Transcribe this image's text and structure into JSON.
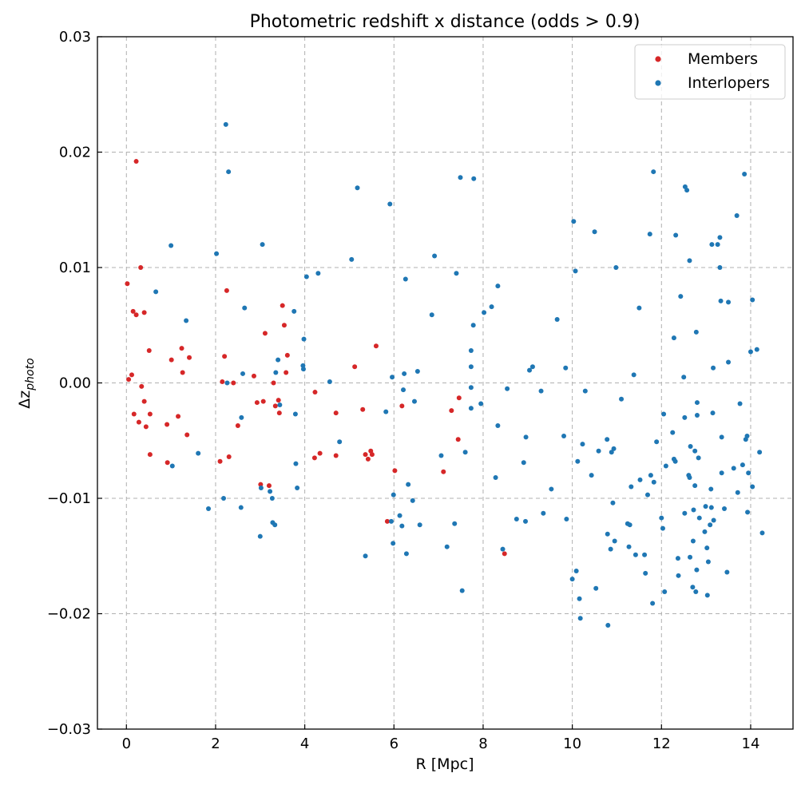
{
  "chart_data": {
    "type": "scatter",
    "title": "Photometric redshift x distance (odds > 0.9)",
    "xlabel": "R [Mpc]",
    "ylabel_base": "Δz",
    "ylabel_sub": "photo",
    "xlim": [
      -0.65,
      14.95
    ],
    "ylim": [
      -0.03,
      0.03
    ],
    "x_ticks": [
      0,
      2,
      4,
      6,
      8,
      10,
      12,
      14
    ],
    "x_tick_labels": [
      "0",
      "2",
      "4",
      "6",
      "8",
      "10",
      "12",
      "14"
    ],
    "y_ticks": [
      -0.03,
      -0.02,
      -0.01,
      0.0,
      0.01,
      0.02,
      0.03
    ],
    "y_tick_labels": [
      "−0.03",
      "−0.02",
      "−0.01",
      "0.00",
      "0.01",
      "0.02",
      "0.03"
    ],
    "grid": true,
    "legend_position": "top-right",
    "series": [
      {
        "name": "Members",
        "color": "#d62728",
        "points": [
          [
            0.02,
            0.0086
          ],
          [
            0.05,
            0.0003
          ],
          [
            0.12,
            0.0007
          ],
          [
            0.15,
            0.0062
          ],
          [
            0.17,
            -0.0027
          ],
          [
            0.22,
            0.0192
          ],
          [
            0.22,
            0.0059
          ],
          [
            0.28,
            -0.0034
          ],
          [
            0.32,
            0.01
          ],
          [
            0.34,
            -0.0003
          ],
          [
            0.4,
            -0.0016
          ],
          [
            0.4,
            0.0061
          ],
          [
            0.44,
            -0.0038
          ],
          [
            0.51,
            0.0028
          ],
          [
            0.53,
            -0.0027
          ],
          [
            0.53,
            -0.0062
          ],
          [
            0.91,
            -0.0036
          ],
          [
            0.92,
            -0.0069
          ],
          [
            1.01,
            0.002
          ],
          [
            1.16,
            -0.0029
          ],
          [
            1.24,
            0.003
          ],
          [
            1.26,
            0.0009
          ],
          [
            1.36,
            -0.0045
          ],
          [
            1.41,
            0.0022
          ],
          [
            2.1,
            -0.0068
          ],
          [
            2.15,
            0.0001
          ],
          [
            2.2,
            0.0023
          ],
          [
            2.25,
            0.008
          ],
          [
            2.3,
            -0.0064
          ],
          [
            2.4,
            0.0
          ],
          [
            2.5,
            -0.0037
          ],
          [
            2.86,
            0.0006
          ],
          [
            2.93,
            -0.0017
          ],
          [
            3.01,
            -0.0088
          ],
          [
            3.07,
            -0.0016
          ],
          [
            3.11,
            0.0043
          ],
          [
            3.2,
            -0.0089
          ],
          [
            3.3,
            0.0
          ],
          [
            3.34,
            -0.002
          ],
          [
            3.41,
            -0.0015
          ],
          [
            3.43,
            -0.0026
          ],
          [
            3.5,
            0.0067
          ],
          [
            3.54,
            0.005
          ],
          [
            3.58,
            0.0009
          ],
          [
            3.61,
            0.0024
          ],
          [
            4.22,
            -0.0065
          ],
          [
            4.23,
            -0.0008
          ],
          [
            4.34,
            -0.0061
          ],
          [
            4.7,
            -0.0063
          ],
          [
            4.7,
            -0.0026
          ],
          [
            5.12,
            0.0014
          ],
          [
            5.3,
            -0.0023
          ],
          [
            5.36,
            -0.0062
          ],
          [
            5.42,
            -0.0066
          ],
          [
            5.48,
            -0.0059
          ],
          [
            5.51,
            -0.0062
          ],
          [
            5.6,
            0.0032
          ],
          [
            5.85,
            -0.012
          ],
          [
            6.02,
            -0.0076
          ],
          [
            6.18,
            -0.002
          ],
          [
            7.11,
            -0.0077
          ],
          [
            7.29,
            -0.0024
          ],
          [
            7.44,
            -0.0049
          ],
          [
            7.46,
            -0.0013
          ],
          [
            8.48,
            -0.0148
          ]
        ]
      },
      {
        "name": "Interlopers",
        "color": "#1f77b4",
        "points": [
          [
            0.66,
            0.0079
          ],
          [
            1.0,
            0.0119
          ],
          [
            1.03,
            -0.0072
          ],
          [
            1.34,
            0.0054
          ],
          [
            1.61,
            -0.0061
          ],
          [
            1.84,
            -0.0109
          ],
          [
            2.02,
            0.0112
          ],
          [
            2.18,
            -0.01
          ],
          [
            2.23,
            0.0224
          ],
          [
            2.26,
            0.0
          ],
          [
            2.29,
            0.0183
          ],
          [
            2.57,
            -0.0108
          ],
          [
            2.58,
            -0.003
          ],
          [
            2.61,
            0.0008
          ],
          [
            2.65,
            0.0065
          ],
          [
            3.0,
            -0.0133
          ],
          [
            3.02,
            -0.0091
          ],
          [
            3.05,
            0.012
          ],
          [
            3.22,
            -0.0094
          ],
          [
            3.27,
            -0.01
          ],
          [
            3.28,
            -0.0121
          ],
          [
            3.33,
            -0.0123
          ],
          [
            3.35,
            0.0009
          ],
          [
            3.4,
            0.002
          ],
          [
            3.44,
            -0.0019
          ],
          [
            3.76,
            0.0062
          ],
          [
            3.79,
            -0.0027
          ],
          [
            3.8,
            -0.007
          ],
          [
            3.83,
            -0.0091
          ],
          [
            3.96,
            0.0015
          ],
          [
            3.97,
            0.0012
          ],
          [
            3.98,
            0.0038
          ],
          [
            4.04,
            0.0092
          ],
          [
            4.3,
            0.0095
          ],
          [
            4.56,
            0.0001
          ],
          [
            4.78,
            -0.0051
          ],
          [
            5.05,
            0.0107
          ],
          [
            5.18,
            0.0169
          ],
          [
            5.36,
            -0.015
          ],
          [
            5.82,
            -0.0025
          ],
          [
            5.91,
            0.0155
          ],
          [
            5.94,
            -0.012
          ],
          [
            5.96,
            0.0005
          ],
          [
            5.98,
            -0.0139
          ],
          [
            5.99,
            -0.0097
          ],
          [
            6.13,
            -0.0115
          ],
          [
            6.18,
            -0.0124
          ],
          [
            6.21,
            -0.0006
          ],
          [
            6.23,
            0.0008
          ],
          [
            6.26,
            0.009
          ],
          [
            6.28,
            -0.0148
          ],
          [
            6.32,
            -0.0088
          ],
          [
            6.42,
            -0.0102
          ],
          [
            6.46,
            -0.0016
          ],
          [
            6.53,
            0.001
          ],
          [
            6.58,
            -0.0123
          ],
          [
            6.85,
            0.0059
          ],
          [
            6.91,
            0.011
          ],
          [
            7.06,
            -0.0063
          ],
          [
            7.19,
            -0.0142
          ],
          [
            7.36,
            -0.0122
          ],
          [
            7.4,
            0.0095
          ],
          [
            7.49,
            0.0178
          ],
          [
            7.53,
            -0.018
          ],
          [
            7.6,
            -0.006
          ],
          [
            7.73,
            0.0014
          ],
          [
            7.73,
            0.0028
          ],
          [
            7.73,
            -0.0022
          ],
          [
            7.73,
            -0.0004
          ],
          [
            7.78,
            0.005
          ],
          [
            7.79,
            0.0177
          ],
          [
            7.95,
            -0.0018
          ],
          [
            8.02,
            0.0061
          ],
          [
            8.19,
            0.0066
          ],
          [
            8.28,
            -0.0082
          ],
          [
            8.33,
            -0.0037
          ],
          [
            8.33,
            0.0084
          ],
          [
            8.44,
            -0.0144
          ],
          [
            8.54,
            -0.0005
          ],
          [
            8.75,
            -0.0118
          ],
          [
            8.91,
            -0.0069
          ],
          [
            8.95,
            -0.012
          ],
          [
            8.96,
            -0.0047
          ],
          [
            9.04,
            0.0011
          ],
          [
            9.11,
            0.0014
          ],
          [
            9.3,
            -0.0007
          ],
          [
            9.35,
            -0.0113
          ],
          [
            9.53,
            -0.0092
          ],
          [
            9.66,
            0.0055
          ],
          [
            9.81,
            -0.0046
          ],
          [
            9.85,
            0.0013
          ],
          [
            9.87,
            -0.0118
          ],
          [
            10.0,
            -0.017
          ],
          [
            10.03,
            0.014
          ],
          [
            10.07,
            0.0097
          ],
          [
            10.09,
            -0.0163
          ],
          [
            10.12,
            -0.0068
          ],
          [
            10.16,
            -0.0187
          ],
          [
            10.18,
            -0.0204
          ],
          [
            10.23,
            -0.0053
          ],
          [
            10.29,
            -0.0007
          ],
          [
            10.43,
            -0.008
          ],
          [
            10.5,
            0.0131
          ],
          [
            10.53,
            -0.0178
          ],
          [
            10.59,
            -0.0059
          ],
          [
            10.78,
            -0.0049
          ],
          [
            10.79,
            -0.0131
          ],
          [
            10.8,
            -0.021
          ],
          [
            10.86,
            -0.0144
          ],
          [
            10.88,
            -0.006
          ],
          [
            10.91,
            -0.0104
          ],
          [
            10.93,
            -0.0057
          ],
          [
            10.95,
            -0.0137
          ],
          [
            10.98,
            0.01
          ],
          [
            11.1,
            -0.0014
          ],
          [
            11.24,
            -0.0122
          ],
          [
            11.27,
            -0.0142
          ],
          [
            11.29,
            -0.0123
          ],
          [
            11.32,
            -0.009
          ],
          [
            11.38,
            0.0007
          ],
          [
            11.42,
            -0.0149
          ],
          [
            11.5,
            0.0065
          ],
          [
            11.52,
            -0.0084
          ],
          [
            11.62,
            -0.0149
          ],
          [
            11.64,
            -0.0165
          ],
          [
            11.69,
            -0.0097
          ],
          [
            11.74,
            0.0129
          ],
          [
            11.76,
            -0.008
          ],
          [
            11.8,
            -0.0191
          ],
          [
            11.82,
            0.0183
          ],
          [
            11.83,
            -0.0086
          ],
          [
            11.89,
            -0.0051
          ],
          [
            12.0,
            -0.0117
          ],
          [
            12.03,
            -0.0126
          ],
          [
            12.05,
            -0.0027
          ],
          [
            12.07,
            -0.0181
          ],
          [
            12.1,
            -0.0072
          ],
          [
            12.25,
            -0.0043
          ],
          [
            12.28,
            0.0039
          ],
          [
            12.28,
            -0.0066
          ],
          [
            12.31,
            -0.0068
          ],
          [
            12.32,
            0.0128
          ],
          [
            12.37,
            -0.0152
          ],
          [
            12.38,
            -0.0167
          ],
          [
            12.43,
            0.0075
          ],
          [
            12.5,
            0.0005
          ],
          [
            12.52,
            -0.0113
          ],
          [
            12.52,
            -0.003
          ],
          [
            12.53,
            0.017
          ],
          [
            12.57,
            0.0167
          ],
          [
            12.61,
            -0.008
          ],
          [
            12.63,
            0.0106
          ],
          [
            12.63,
            -0.0082
          ],
          [
            12.64,
            -0.0151
          ],
          [
            12.65,
            -0.0055
          ],
          [
            12.7,
            -0.0177
          ],
          [
            12.71,
            -0.0137
          ],
          [
            12.72,
            -0.011
          ],
          [
            12.75,
            -0.0059
          ],
          [
            12.75,
            -0.0089
          ],
          [
            12.77,
            -0.0181
          ],
          [
            12.78,
            0.0044
          ],
          [
            12.79,
            -0.0162
          ],
          [
            12.8,
            -0.0028
          ],
          [
            12.8,
            -0.0017
          ],
          [
            12.83,
            -0.0065
          ],
          [
            12.85,
            -0.0117
          ],
          [
            12.97,
            -0.0129
          ],
          [
            12.99,
            -0.0107
          ],
          [
            13.02,
            -0.0143
          ],
          [
            13.03,
            -0.0184
          ],
          [
            13.05,
            -0.0155
          ],
          [
            13.09,
            -0.0123
          ],
          [
            13.11,
            -0.0092
          ],
          [
            13.12,
            -0.0108
          ],
          [
            13.13,
            0.012
          ],
          [
            13.15,
            -0.0026
          ],
          [
            13.16,
            0.0013
          ],
          [
            13.17,
            -0.0119
          ],
          [
            13.26,
            0.012
          ],
          [
            13.31,
            0.01
          ],
          [
            13.31,
            0.0126
          ],
          [
            13.33,
            0.0071
          ],
          [
            13.35,
            -0.0047
          ],
          [
            13.35,
            -0.0078
          ],
          [
            13.41,
            -0.0109
          ],
          [
            13.47,
            -0.0164
          ],
          [
            13.5,
            0.007
          ],
          [
            13.5,
            0.0018
          ],
          [
            13.62,
            -0.0074
          ],
          [
            13.69,
            0.0145
          ],
          [
            13.71,
            -0.0095
          ],
          [
            13.76,
            -0.0018
          ],
          [
            13.82,
            -0.0071
          ],
          [
            13.86,
            0.0181
          ],
          [
            13.89,
            -0.0049
          ],
          [
            13.92,
            -0.0046
          ],
          [
            13.93,
            -0.0112
          ],
          [
            13.95,
            -0.0078
          ],
          [
            14.0,
            0.0027
          ],
          [
            14.04,
            0.0072
          ],
          [
            14.04,
            -0.009
          ],
          [
            14.14,
            0.0029
          ],
          [
            14.2,
            -0.006
          ],
          [
            14.26,
            -0.013
          ]
        ]
      }
    ]
  }
}
